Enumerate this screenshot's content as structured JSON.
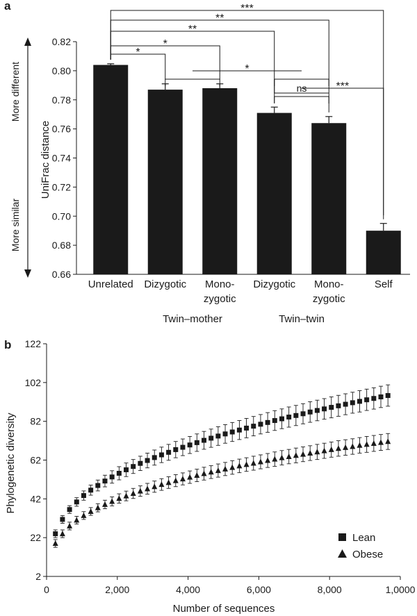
{
  "chart_data": [
    {
      "panel_label": "a",
      "type": "bar",
      "ylabel": "UniFrac distance",
      "ylim": [
        0.66,
        0.82
      ],
      "yticks": [
        "0.66",
        "0.68",
        "0.70",
        "0.72",
        "0.74",
        "0.76",
        "0.78",
        "0.80",
        "0.82"
      ],
      "side_labels": {
        "top": "More different",
        "bottom": "More similar"
      },
      "categories": [
        [
          "Unrelated"
        ],
        [
          "Dizygotic"
        ],
        [
          "Mono-",
          "zygotic"
        ],
        [
          "Dizygotic"
        ],
        [
          "Mono-",
          "zygotic"
        ],
        [
          "Self"
        ]
      ],
      "values": [
        0.804,
        0.787,
        0.788,
        0.771,
        0.764,
        0.69
      ],
      "errors": [
        0.0008,
        0.004,
        0.003,
        0.004,
        0.0045,
        0.005
      ],
      "color": "#1a1a1a",
      "groups": [
        {
          "label": "Twin–mother",
          "bars": [
            1,
            2
          ]
        },
        {
          "label": "Twin–twin",
          "bars": [
            3,
            4
          ]
        }
      ],
      "significance": [
        {
          "from": [
            0
          ],
          "to": [
            1
          ],
          "label": "*"
        },
        {
          "from": [
            0
          ],
          "to": [
            2
          ],
          "label": "*"
        },
        {
          "from": [
            0
          ],
          "to": [
            3
          ],
          "label": "**"
        },
        {
          "from": [
            0
          ],
          "to": [
            4
          ],
          "label": "**"
        },
        {
          "from": [
            0
          ],
          "to": [
            5
          ],
          "label": "***"
        },
        {
          "from": [
            1,
            2
          ],
          "to": [
            3,
            4
          ],
          "label": "*"
        },
        {
          "from": [
            3
          ],
          "to": [
            4
          ],
          "label": "ns"
        },
        {
          "from": [
            3,
            4
          ],
          "to": [
            5
          ],
          "label": "***"
        }
      ]
    },
    {
      "panel_label": "b",
      "type": "scatter",
      "xlabel": "Number of sequences",
      "ylabel": "Phylogenetic diversity",
      "xlim": [
        0,
        10000
      ],
      "ylim": [
        2,
        122
      ],
      "xticks": [
        "0",
        "2,000",
        "4,000",
        "6,000",
        "8,000",
        "1,0000"
      ],
      "yticks": [
        "2",
        "22",
        "42",
        "62",
        "82",
        "102",
        "122"
      ],
      "legend_position": "bottom-right",
      "series": [
        {
          "name": "Lean",
          "marker": "square",
          "x": [
            250,
            450,
            650,
            850,
            1050,
            1250,
            1450,
            1650,
            1850,
            2050,
            2250,
            2450,
            2650,
            2850,
            3050,
            3250,
            3450,
            3650,
            3850,
            4050,
            4250,
            4450,
            4650,
            4850,
            5050,
            5250,
            5450,
            5650,
            5850,
            6050,
            6250,
            6450,
            6650,
            6850,
            7050,
            7250,
            7450,
            7650,
            7850,
            8050,
            8250,
            8450,
            8650,
            8850,
            9050,
            9250,
            9450,
            9650
          ],
          "y": [
            24.0,
            31.4,
            36.5,
            40.4,
            43.7,
            46.5,
            48.9,
            51.2,
            53.3,
            55.2,
            57.0,
            58.7,
            60.3,
            61.8,
            63.3,
            64.7,
            66.0,
            67.4,
            68.6,
            69.8,
            71.0,
            72.2,
            73.3,
            74.4,
            75.5,
            76.5,
            77.5,
            78.5,
            79.5,
            80.5,
            81.4,
            82.4,
            83.3,
            84.2,
            85.0,
            85.9,
            86.8,
            87.6,
            88.4,
            89.2,
            90.0,
            90.8,
            91.6,
            92.3,
            93.1,
            93.8,
            94.6,
            95.3
          ],
          "error": [
            2.0,
            2.0,
            2.0,
            2.2,
            2.4,
            2.6,
            2.8,
            3.0,
            3.2,
            3.4,
            3.5,
            3.6,
            3.7,
            3.8,
            3.9,
            4.0,
            4.1,
            4.2,
            4.3,
            4.4,
            4.5,
            4.6,
            4.7,
            4.8,
            4.8,
            4.9,
            4.9,
            5.0,
            5.0,
            5.0,
            5.1,
            5.1,
            5.1,
            5.2,
            5.2,
            5.2,
            5.3,
            5.3,
            5.3,
            5.4,
            5.4,
            5.4,
            5.4,
            5.5,
            5.5,
            5.5,
            5.5,
            5.5
          ]
        },
        {
          "name": "Obese",
          "marker": "triangle",
          "x": [
            250,
            450,
            650,
            850,
            1050,
            1250,
            1450,
            1650,
            1850,
            2050,
            2250,
            2450,
            2650,
            2850,
            3050,
            3250,
            3450,
            3650,
            3850,
            4050,
            4250,
            4450,
            4650,
            4850,
            5050,
            5250,
            5450,
            5650,
            5850,
            6050,
            6250,
            6450,
            6650,
            6850,
            7050,
            7250,
            7450,
            7650,
            7850,
            8050,
            8250,
            8450,
            8650,
            8850,
            9050,
            9250,
            9450,
            9650
          ],
          "y": [
            19.0,
            24.0,
            28.0,
            31.0,
            33.4,
            35.5,
            37.4,
            39.1,
            40.7,
            42.2,
            43.5,
            44.8,
            46.0,
            47.2,
            48.3,
            49.4,
            50.4,
            51.4,
            52.3,
            53.2,
            54.1,
            55.0,
            55.8,
            56.6,
            57.4,
            58.2,
            59.0,
            59.7,
            60.4,
            61.1,
            61.8,
            62.5,
            63.2,
            63.8,
            64.4,
            65.0,
            65.6,
            66.2,
            66.8,
            67.4,
            68.0,
            68.5,
            69.0,
            69.6,
            70.1,
            70.6,
            71.1,
            71.6
          ],
          "error": [
            2.0,
            2.0,
            2.0,
            2.0,
            2.0,
            2.0,
            2.1,
            2.2,
            2.3,
            2.4,
            2.5,
            2.6,
            2.7,
            2.8,
            2.9,
            3.0,
            3.0,
            3.1,
            3.1,
            3.2,
            3.2,
            3.3,
            3.3,
            3.4,
            3.4,
            3.5,
            3.5,
            3.5,
            3.6,
            3.6,
            3.6,
            3.7,
            3.7,
            3.7,
            3.8,
            3.8,
            3.8,
            3.9,
            3.9,
            3.9,
            4.0,
            4.0,
            4.0,
            4.0,
            4.1,
            4.1,
            4.1,
            4.1
          ]
        }
      ]
    }
  ]
}
